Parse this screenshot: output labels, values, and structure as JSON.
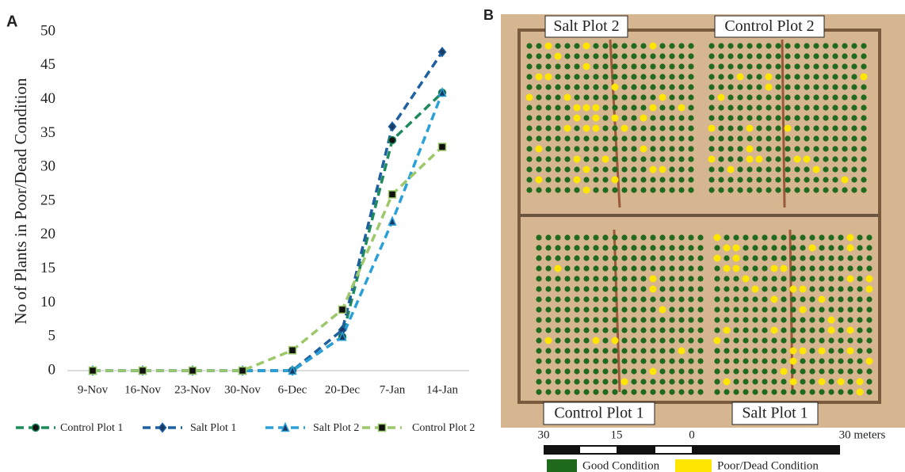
{
  "panel_labels": [
    "A",
    "B"
  ],
  "chart_data": {
    "type": "line",
    "y_label": "No of Plants in Poor/Dead Condition",
    "categories": [
      "9-Nov",
      "16-Nov",
      "23-Nov",
      "30-Nov",
      "6-Dec",
      "20-Dec",
      "7-Jan",
      "14-Jan"
    ],
    "series": [
      {
        "name": "Control Plot 1",
        "color": "#1d8a5c",
        "marker": "circle",
        "values": [
          0,
          0,
          0,
          0,
          0,
          5,
          34,
          41
        ]
      },
      {
        "name": "Salt Plot 1",
        "color": "#1f60a0",
        "marker": "diamond",
        "values": [
          0,
          0,
          0,
          0,
          0,
          6,
          36,
          47
        ]
      },
      {
        "name": "Salt Plot 2",
        "color": "#2aa0d8",
        "marker": "triangle",
        "values": [
          0,
          0,
          0,
          0,
          0,
          5,
          22,
          41
        ]
      },
      {
        "name": "Control Plot 2",
        "color": "#9cc86a",
        "marker": "square",
        "values": [
          0,
          0,
          0,
          0,
          3,
          9,
          26,
          33
        ]
      }
    ],
    "ylim": [
      0,
      50
    ],
    "yticks": [
      0,
      5,
      10,
      15,
      20,
      25,
      30,
      35,
      40,
      45,
      50
    ],
    "grid": false,
    "legend": "bottom"
  },
  "map": {
    "plot_labels": [
      "Salt Plot 2",
      "Control Plot 2",
      "Control Plot 1",
      "Salt Plot 1"
    ],
    "scale_ticks": [
      30,
      15,
      0
    ],
    "scale_unit": "30 meters",
    "legend": [
      "Good Condition",
      "Poor/Dead Condition"
    ]
  }
}
